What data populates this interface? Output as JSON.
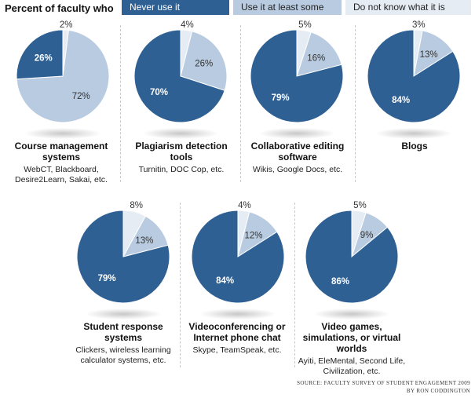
{
  "header": {
    "title": "Percent of faculty who",
    "legend": [
      {
        "label": "Never use it",
        "color": "#2e6094"
      },
      {
        "label": "Use it at least some",
        "color": "#b9cbe0"
      },
      {
        "label": "Do not know what it is",
        "color": "#e6ecf4"
      }
    ]
  },
  "colors": {
    "never": "#2e6094",
    "some": "#b9cbe0",
    "dont_know": "#e6ecf4"
  },
  "chart_data": [
    {
      "type": "pie",
      "title": "Course management systems",
      "subtitle": "WebCT, Blackboard, Desire2Learn, Sakai, etc.",
      "labels": [
        "Never use it",
        "Use it at least some",
        "Do not know what it is"
      ],
      "values": [
        26,
        72,
        2
      ]
    },
    {
      "type": "pie",
      "title": "Plagiarism detection tools",
      "subtitle": "Turnitin, DOC Cop, etc.",
      "labels": [
        "Never use it",
        "Use it at least some",
        "Do not know what it is"
      ],
      "values": [
        70,
        26,
        4
      ]
    },
    {
      "type": "pie",
      "title": "Collaborative editing software",
      "subtitle": "Wikis, Google Docs, etc.",
      "labels": [
        "Never use it",
        "Use it at least some",
        "Do not know what it is"
      ],
      "values": [
        79,
        16,
        5
      ]
    },
    {
      "type": "pie",
      "title": "Blogs",
      "subtitle": "",
      "labels": [
        "Never use it",
        "Use it at least some",
        "Do not know what it is"
      ],
      "values": [
        84,
        13,
        3
      ]
    },
    {
      "type": "pie",
      "title": "Student response systems",
      "subtitle": "Clickers, wireless learning calculator systems, etc.",
      "labels": [
        "Never use it",
        "Use it at least some",
        "Do not know what it is"
      ],
      "values": [
        79,
        13,
        8
      ]
    },
    {
      "type": "pie",
      "title": "Videoconferencing or Internet phone chat",
      "subtitle": "Skype, TeamSpeak, etc.",
      "labels": [
        "Never use it",
        "Use it at least some",
        "Do not know what it is"
      ],
      "values": [
        84,
        12,
        4
      ]
    },
    {
      "type": "pie",
      "title": "Video games, simulations, or virtual worlds",
      "subtitle": "Ayiti, EleMental, Second Life, Civilization, etc.",
      "labels": [
        "Never use it",
        "Use it at least some",
        "Do not know what it is"
      ],
      "values": [
        86,
        9,
        5
      ]
    }
  ],
  "source": {
    "line1": "Source: Faculty Survey of Student Engagement 2009",
    "line2": "By Ron Coddington"
  }
}
